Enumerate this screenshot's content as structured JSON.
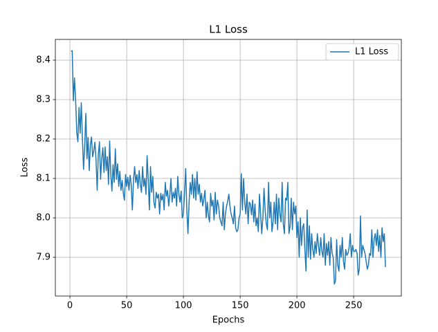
{
  "chart_data": {
    "type": "line",
    "title": "L1 Loss",
    "xlabel": "Epochs",
    "ylabel": "Loss",
    "x": [
      1,
      2,
      3,
      4,
      5,
      6,
      7,
      8,
      9,
      10,
      11,
      12,
      13,
      14,
      15,
      16,
      17,
      18,
      19,
      20,
      21,
      22,
      23,
      24,
      25,
      26,
      27,
      28,
      29,
      30,
      31,
      32,
      33,
      34,
      35,
      36,
      37,
      38,
      39,
      40,
      41,
      42,
      43,
      44,
      45,
      46,
      47,
      48,
      49,
      50,
      51,
      52,
      53,
      54,
      55,
      56,
      57,
      58,
      59,
      60,
      61,
      62,
      63,
      64,
      65,
      66,
      67,
      68,
      69,
      70,
      71,
      72,
      73,
      74,
      75,
      76,
      77,
      78,
      79,
      80,
      81,
      82,
      83,
      84,
      85,
      86,
      87,
      88,
      89,
      90,
      91,
      92,
      93,
      94,
      95,
      96,
      97,
      98,
      99,
      100,
      101,
      102,
      103,
      104,
      105,
      106,
      107,
      108,
      109,
      110,
      111,
      112,
      113,
      114,
      115,
      116,
      117,
      118,
      119,
      120,
      121,
      122,
      123,
      124,
      125,
      126,
      127,
      128,
      129,
      130,
      131,
      132,
      133,
      134,
      135,
      136,
      137,
      138,
      139,
      140,
      141,
      142,
      143,
      144,
      145,
      146,
      147,
      148,
      149,
      150,
      151,
      152,
      153,
      154,
      155,
      156,
      157,
      158,
      159,
      160,
      161,
      162,
      163,
      164,
      165,
      166,
      167,
      168,
      169,
      170,
      171,
      172,
      173,
      174,
      175,
      176,
      177,
      178,
      179,
      180,
      181,
      182,
      183,
      184,
      185,
      186,
      187,
      188,
      189,
      190,
      191,
      192,
      193,
      194,
      195,
      196,
      197,
      198,
      199,
      200,
      201,
      202,
      203,
      204,
      205,
      206,
      207,
      208,
      209,
      210,
      211,
      212,
      213,
      214,
      215,
      216,
      217,
      218,
      219,
      220,
      221,
      222,
      223,
      224,
      225,
      226,
      227,
      228,
      229,
      230,
      231,
      232,
      233,
      234,
      235,
      236,
      237,
      238,
      239,
      240,
      241,
      242,
      243,
      244,
      245,
      246,
      247,
      248,
      249,
      250,
      251,
      252,
      253,
      254,
      255,
      256,
      257,
      258,
      259,
      260,
      261,
      262,
      263,
      264,
      265,
      266,
      267,
      268,
      269,
      270,
      271,
      272,
      273,
      274,
      275,
      276,
      277,
      278
    ],
    "series": [
      {
        "name": "L1 Loss",
        "color": "#1f77b4",
        "values": [
          8.423,
          8.424,
          8.297,
          8.355,
          8.3,
          8.218,
          8.193,
          8.28,
          8.215,
          8.292,
          8.2,
          8.123,
          8.182,
          8.265,
          8.15,
          8.204,
          8.12,
          8.185,
          8.205,
          8.155,
          8.17,
          8.192,
          8.148,
          8.07,
          8.16,
          8.193,
          8.098,
          8.15,
          8.178,
          8.115,
          8.18,
          8.12,
          8.155,
          8.085,
          8.195,
          8.11,
          8.068,
          8.135,
          8.09,
          8.175,
          8.098,
          8.137,
          8.08,
          8.118,
          8.07,
          8.095,
          8.063,
          8.045,
          8.11,
          8.08,
          8.103,
          8.07,
          8.108,
          8.085,
          8.02,
          8.095,
          8.13,
          8.09,
          8.11,
          8.075,
          8.12,
          8.085,
          8.065,
          8.13,
          8.08,
          8.1,
          8.06,
          8.158,
          8.095,
          8.02,
          8.13,
          8.065,
          8.105,
          8.04,
          8.025,
          8.065,
          8.05,
          8.06,
          8.01,
          8.062,
          8.045,
          8.06,
          8.02,
          8.09,
          8.055,
          8.07,
          8.03,
          8.058,
          8.1,
          8.04,
          8.065,
          8.05,
          8.075,
          8.03,
          8.105,
          8.06,
          8.04,
          8.068,
          8.0,
          8.01,
          8.065,
          8.125,
          8.02,
          7.96,
          8.04,
          8.09,
          8.06,
          8.11,
          8.05,
          8.1,
          8.045,
          8.117,
          8.06,
          8.085,
          8.04,
          8.062,
          8.03,
          8.048,
          8.07,
          8.0,
          8.04,
          8.005,
          7.99,
          8.062,
          8.03,
          8.045,
          7.995,
          8.065,
          8.01,
          8.045,
          8.03,
          8.0,
          7.99,
          7.98,
          8.04,
          7.97,
          8.01,
          8.03,
          8.042,
          8.06,
          8.03,
          8.01,
          8.0,
          7.985,
          8.03,
          7.975,
          7.965,
          7.97,
          8.0,
          8.01,
          8.112,
          8.02,
          8.1,
          8.04,
          8.01,
          8.06,
          7.985,
          8.04,
          8.035,
          8.008,
          8.045,
          7.99,
          8.035,
          7.98,
          8.0,
          7.965,
          8.06,
          8.01,
          7.96,
          8.0,
          8.075,
          8.02,
          7.985,
          7.97,
          8.09,
          8.0,
          8.04,
          7.965,
          7.99,
          8.04,
          7.985,
          8.06,
          7.97,
          8.05,
          8.01,
          7.99,
          8.09,
          7.985,
          7.96,
          8.05,
          8.045,
          8.09,
          7.96,
          7.98,
          8.05,
          7.97,
          8.04,
          8.01,
          8.03,
          7.95,
          7.99,
          7.9,
          8.0,
          7.93,
          7.975,
          7.985,
          7.92,
          7.865,
          8.02,
          7.9,
          7.98,
          7.895,
          7.96,
          7.92,
          7.9,
          7.94,
          7.91,
          7.96,
          7.93,
          7.905,
          7.95,
          7.915,
          7.9,
          7.96,
          7.88,
          7.935,
          7.905,
          7.94,
          7.88,
          7.95,
          7.91,
          7.9,
          7.832,
          7.84,
          7.945,
          7.88,
          7.865,
          7.93,
          7.9,
          7.95,
          7.89,
          7.87,
          7.92,
          7.905,
          7.91,
          7.925,
          7.96,
          7.9,
          7.93,
          7.915,
          7.915,
          7.92,
          7.91,
          7.855,
          7.87,
          8.005,
          7.9,
          7.93,
          7.92,
          7.91,
          7.89,
          7.87,
          7.88,
          7.91,
          7.905,
          7.97,
          7.9,
          7.945,
          7.96,
          7.93,
          7.97,
          7.915,
          7.955,
          7.9,
          7.975,
          7.94,
          7.96,
          7.875
        ]
      }
    ],
    "xlim": [
      -12.85,
      292
    ],
    "ylim": [
      7.8018,
      8.4526
    ],
    "xticks": [
      0,
      50,
      100,
      150,
      200,
      250
    ],
    "yticks": [
      7.9,
      {
        "value": 8,
        "label": "8.0"
      },
      8.1,
      8.2,
      8.3,
      8.4
    ],
    "grid": true,
    "legend": "upper right"
  }
}
